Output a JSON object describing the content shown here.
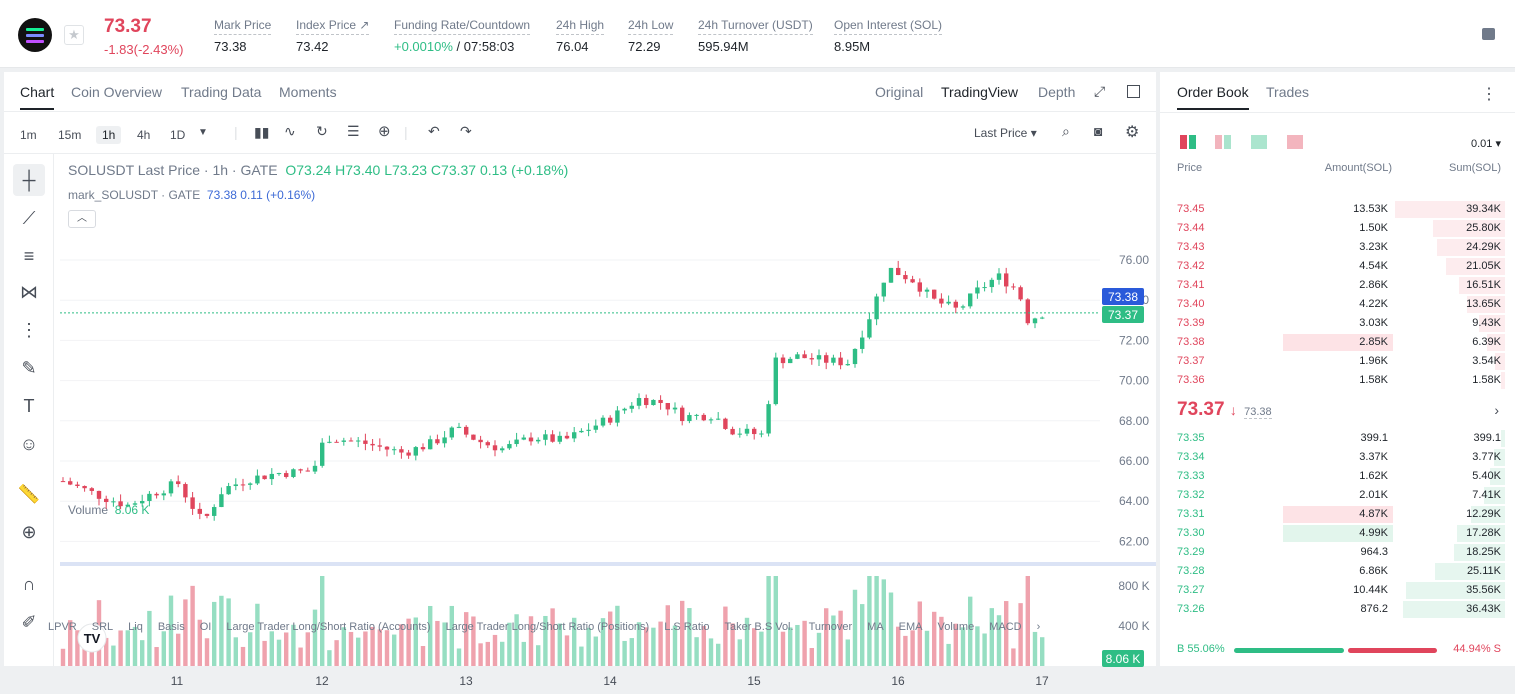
{
  "header": {
    "price": "73.37",
    "change": "-1.83(-2.43%)",
    "stats": [
      {
        "label": "Mark Price",
        "value": "73.38"
      },
      {
        "label": "Index Price ↗",
        "value": "73.42"
      },
      {
        "label": "Funding Rate/Countdown",
        "value_pos": "+0.0010%",
        "value_rest": " / 07:58:03"
      },
      {
        "label": "24h High",
        "value": "76.04"
      },
      {
        "label": "24h Low",
        "value": "72.29"
      },
      {
        "label": "24h Turnover (USDT)",
        "value": "595.94M"
      },
      {
        "label": "Open Interest (SOL)",
        "value": "8.95M"
      }
    ]
  },
  "chart_tabs": [
    "Chart",
    "Coin Overview",
    "Trading Data",
    "Moments"
  ],
  "view_tabs": [
    "Original",
    "TradingView",
    "Depth"
  ],
  "intervals": [
    "1m",
    "15m",
    "1h",
    "4h",
    "1D"
  ],
  "price_source": "Last Price",
  "legend": {
    "main_title": "SOLUSDT Last Price · 1h · GATE",
    "o": "O73.24",
    "h": "H73.40",
    "l": "L73.23",
    "c": "C73.37",
    "chg": "0.13 (+0.18%)",
    "mark_label": "mark_SOLUSDT · GATE",
    "mark_v1": "73.38",
    "mark_v2": "0.11 (+0.16%)",
    "volume_label": "Volume",
    "volume_value": "8.06 K"
  },
  "price_axis": [
    "76.00",
    "74.00",
    "72.00",
    "70.00",
    "68.00",
    "66.00",
    "64.00",
    "62.00"
  ],
  "vol_axis": [
    "800 K",
    "400 K"
  ],
  "price_tags": {
    "mark": "73.38",
    "last": "73.37",
    "vol": "8.06 K"
  },
  "x_axis": [
    "11",
    "12",
    "13",
    "14",
    "15",
    "16",
    "17"
  ],
  "indicators": [
    "LPVR",
    "SRL",
    "Liq",
    "Basis",
    "OI",
    "Large Trader Long/Short Ratio (Accounts)",
    "Large Trader Long/Short Ratio (Positions)",
    "L.S Ratio",
    "Taker B.S Vol.",
    "Turnover",
    "MA",
    "EMA",
    "Volume",
    "MACD"
  ],
  "orderbook": {
    "tabs": [
      "Order Book",
      "Trades"
    ],
    "precision": "0.01",
    "headers": [
      "Price",
      "Amount(SOL)",
      "Sum(SOL)"
    ],
    "asks": [
      [
        "73.45",
        "13.53K",
        "39.34K"
      ],
      [
        "73.44",
        "1.50K",
        "25.80K"
      ],
      [
        "73.43",
        "3.23K",
        "24.29K"
      ],
      [
        "73.42",
        "4.54K",
        "21.05K"
      ],
      [
        "73.41",
        "2.86K",
        "16.51K"
      ],
      [
        "73.40",
        "4.22K",
        "13.65K"
      ],
      [
        "73.39",
        "3.03K",
        "9.43K"
      ],
      [
        "73.38",
        "2.85K",
        "6.39K"
      ],
      [
        "73.37",
        "1.96K",
        "3.54K"
      ],
      [
        "73.36",
        "1.58K",
        "1.58K"
      ]
    ],
    "mid_price": "73.37",
    "mid_arrow": "↓",
    "mark": "73.38",
    "bids": [
      [
        "73.35",
        "399.1",
        "399.1"
      ],
      [
        "73.34",
        "3.37K",
        "3.77K"
      ],
      [
        "73.33",
        "1.62K",
        "5.40K"
      ],
      [
        "73.32",
        "2.01K",
        "7.41K"
      ],
      [
        "73.31",
        "4.87K",
        "12.29K"
      ],
      [
        "73.30",
        "4.99K",
        "17.28K"
      ],
      [
        "73.29",
        "964.3",
        "18.25K"
      ],
      [
        "73.28",
        "6.86K",
        "25.11K"
      ],
      [
        "73.27",
        "10.44K",
        "35.56K"
      ],
      [
        "73.26",
        "876.2",
        "36.43K"
      ]
    ],
    "buy_ratio": "B 55.06%",
    "sell_ratio": "44.94% S",
    "buy_pct": 55.06
  },
  "colors": {
    "up": "#2ebd85",
    "down": "#e0455c",
    "mark_tag": "#2a5ada"
  }
}
